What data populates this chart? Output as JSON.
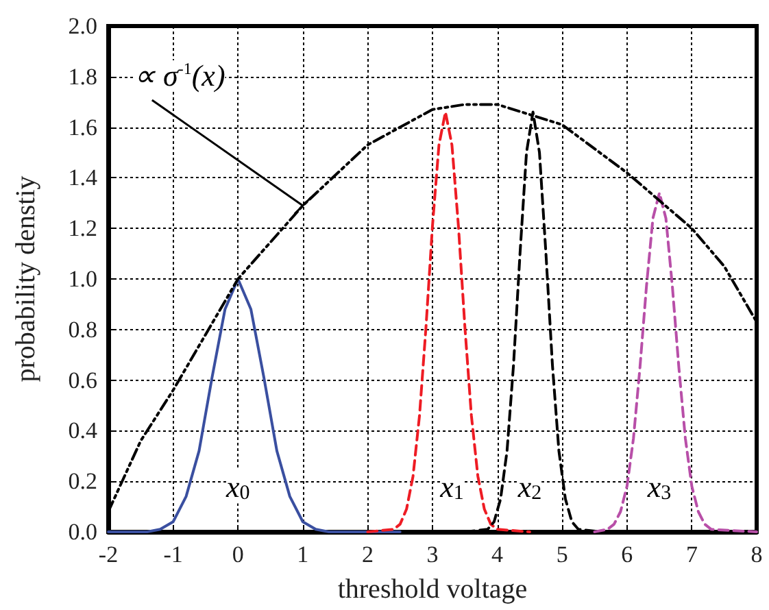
{
  "chart_data": {
    "type": "line",
    "xlabel": "threshold voltage",
    "ylabel": "probability denstiy",
    "xlim": [
      -2,
      8
    ],
    "xticks": [
      -2,
      -1,
      0,
      1,
      2,
      3,
      4,
      5,
      6,
      7,
      8
    ],
    "ylim": [
      0,
      2
    ],
    "yticks": [
      {
        "value": 0,
        "label": "0.0"
      },
      {
        "value": 0.2,
        "label": "0.2"
      },
      {
        "value": 0.4,
        "label": "0.4"
      },
      {
        "value": 0.6,
        "label": "0.6"
      },
      {
        "value": 0.8,
        "label": "0.8"
      },
      {
        "value": 1,
        "label": "1.0"
      },
      {
        "value": 1.2,
        "label": "1.2"
      },
      {
        "value": 1.4,
        "label": "1.4"
      },
      {
        "value": 1.6,
        "label": "1.6"
      },
      {
        "value": 1.8,
        "label": "1.8"
      },
      {
        "value": 2,
        "label": "2.0"
      }
    ],
    "grid": true,
    "marker": "none",
    "series": [
      {
        "color": "#3a4fa0",
        "line_style": "solid",
        "x": [
          -2,
          -1.4,
          -1.2,
          -1.0,
          -0.8,
          -0.6,
          -0.4,
          -0.2,
          0,
          0.2,
          0.4,
          0.6,
          0.8,
          1.0,
          1.2,
          1.4,
          2.5
        ],
        "values": [
          0,
          0,
          0.01,
          0.04,
          0.14,
          0.32,
          0.61,
          0.88,
          1.0,
          0.88,
          0.61,
          0.32,
          0.14,
          0.04,
          0.01,
          0,
          0
        ]
      },
      {
        "color": "#ee1c24",
        "line_style": "dashed",
        "x": [
          2.0,
          2.4,
          2.5,
          2.6,
          2.7,
          2.8,
          2.9,
          3.0,
          3.1,
          3.2,
          3.3,
          3.4,
          3.5,
          3.6,
          3.7,
          3.8,
          3.9,
          4.0,
          4.5
        ],
        "values": [
          0,
          0.01,
          0.03,
          0.09,
          0.22,
          0.46,
          0.81,
          1.21,
          1.53,
          1.66,
          1.53,
          1.21,
          0.81,
          0.46,
          0.22,
          0.09,
          0.03,
          0.01,
          0
        ]
      },
      {
        "color": "#000000",
        "line_style": "dashed",
        "x": [
          3.5,
          3.85,
          3.95,
          4.05,
          4.15,
          4.25,
          4.35,
          4.45,
          4.55,
          4.65,
          4.75,
          4.85,
          4.95,
          5.05,
          5.15,
          5.25,
          5.6
        ],
        "values": [
          0,
          0.01,
          0.04,
          0.13,
          0.32,
          0.66,
          1.1,
          1.5,
          1.66,
          1.5,
          1.1,
          0.66,
          0.32,
          0.13,
          0.04,
          0.01,
          0
        ]
      },
      {
        "color": "#b84fa8",
        "line_style": "dashed",
        "x": [
          5.5,
          5.7,
          5.8,
          5.9,
          6.0,
          6.1,
          6.2,
          6.3,
          6.4,
          6.5,
          6.6,
          6.7,
          6.8,
          6.9,
          7.0,
          7.1,
          7.2,
          7.3,
          8.0
        ],
        "values": [
          0,
          0.01,
          0.03,
          0.08,
          0.18,
          0.37,
          0.65,
          0.97,
          1.24,
          1.34,
          1.24,
          0.97,
          0.65,
          0.37,
          0.18,
          0.08,
          0.03,
          0.01,
          0
        ]
      },
      {
        "color": "#000000",
        "line_style": "dotted",
        "x": [
          -2,
          -1.5,
          -1,
          -0.5,
          0,
          1,
          2,
          3,
          3.5,
          4,
          5,
          6,
          7,
          7.5,
          8
        ],
        "values": [
          0.08,
          0.36,
          0.56,
          0.78,
          1.0,
          1.29,
          1.53,
          1.67,
          1.69,
          1.69,
          1.61,
          1.42,
          1.2,
          1.05,
          0.83
        ]
      }
    ],
    "annotations": [
      {
        "text": "∝ σ$^{-1}$(x)",
        "x": 1.0,
        "y": 1.29
      },
      {
        "text": "x$_{0}$",
        "x": 0,
        "y": 0.18
      },
      {
        "text": "x$_{1}$",
        "x": 3.3,
        "y": 0.18
      },
      {
        "text": "x$_{2}$",
        "x": 4.5,
        "y": 0.18
      },
      {
        "text": "x$_{3}$",
        "x": 6.5,
        "y": 0.18
      }
    ]
  }
}
